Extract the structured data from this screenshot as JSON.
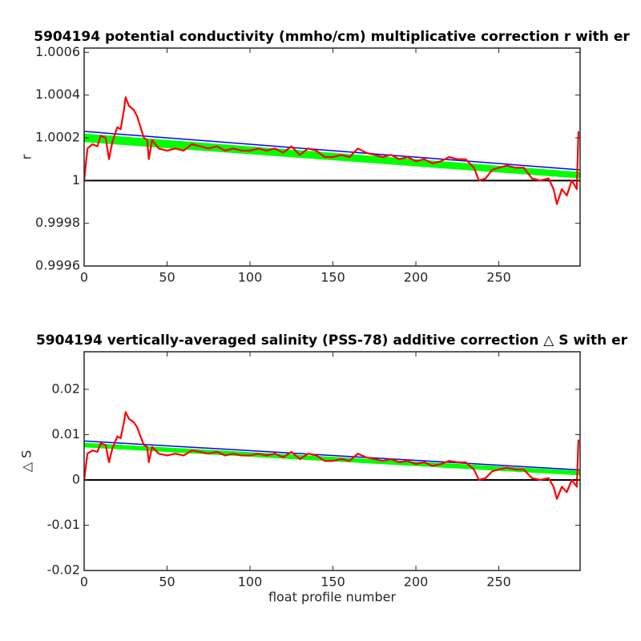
{
  "chart_data": [
    {
      "type": "line",
      "title": "5904194 potential conductivity (mmho/cm) multiplicative correction r with er",
      "ylabel": "r",
      "x": [
        0,
        2,
        5,
        8,
        10,
        13,
        15,
        17,
        20,
        22,
        24,
        25,
        27,
        30,
        32,
        34,
        36,
        38,
        39,
        41,
        45,
        50,
        55,
        60,
        65,
        70,
        75,
        80,
        85,
        90,
        95,
        100,
        105,
        110,
        115,
        120,
        125,
        130,
        135,
        140,
        145,
        150,
        155,
        160,
        165,
        170,
        175,
        180,
        185,
        190,
        195,
        200,
        205,
        210,
        215,
        220,
        225,
        230,
        235,
        238,
        242,
        246,
        250,
        255,
        260,
        265,
        270,
        275,
        280,
        283,
        285,
        288,
        291,
        294,
        297,
        298
      ],
      "series": [
        {
          "color": "#ff0000",
          "values": [
            1.0,
            1.00015,
            1.00017,
            1.00016,
            1.00021,
            1.0002,
            1.0001,
            1.00018,
            1.00025,
            1.00024,
            1.00033,
            1.00039,
            1.00035,
            1.00033,
            1.0003,
            1.00025,
            1.0002,
            1.00019,
            1.0001,
            1.00019,
            1.00015,
            1.00014,
            1.00015,
            1.00014,
            1.00017,
            1.00016,
            1.00015,
            1.00016,
            1.00014,
            1.00015,
            1.00014,
            1.00014,
            1.00015,
            1.00014,
            1.00015,
            1.00013,
            1.00016,
            1.00012,
            1.00015,
            1.00014,
            1.00011,
            1.00011,
            1.00012,
            1.00011,
            1.00015,
            1.00013,
            1.00012,
            1.00011,
            1.00012,
            1.0001,
            1.00011,
            1.00009,
            1.0001,
            1.00008,
            1.00009,
            1.00011,
            1.0001,
            1.0001,
            1.00006,
            1.0,
            1.00001,
            1.00005,
            1.00006,
            1.00007,
            1.00006,
            1.00006,
            1.00001,
            1.0,
            1.00001,
            0.99996,
            0.99989,
            0.99996,
            0.99993,
            1.0,
            0.99996,
            1.00023
          ]
        }
      ],
      "band": {
        "x": [
          0,
          299
        ],
        "upper": [
          1.00022,
          1.00004
        ],
        "lower": [
          1.00018,
          1.00001
        ],
        "color": "#00ff00"
      },
      "fit": {
        "x": [
          0,
          299
        ],
        "values": [
          1.00023,
          1.00005
        ],
        "color": "#0000ff"
      },
      "reference_line": 1,
      "xlim": [
        0,
        299
      ],
      "xticks": [
        0,
        50,
        100,
        150,
        200,
        250
      ],
      "ylim": [
        0.9996,
        1.00062
      ],
      "yticks": [
        0.9996,
        0.9998,
        1,
        1.0002,
        1.0004,
        1.0006
      ]
    },
    {
      "type": "line",
      "title": "5904194 vertically-averaged salinity (PSS-78) additive correction △ S with er",
      "ylabel": "△ S",
      "xlabel": "float profile number",
      "x": [
        0,
        2,
        5,
        8,
        10,
        13,
        15,
        17,
        20,
        22,
        24,
        25,
        27,
        30,
        32,
        34,
        36,
        38,
        39,
        41,
        45,
        50,
        55,
        60,
        65,
        70,
        75,
        80,
        85,
        90,
        95,
        100,
        105,
        110,
        115,
        120,
        125,
        130,
        135,
        140,
        145,
        150,
        155,
        160,
        165,
        170,
        175,
        180,
        185,
        190,
        195,
        200,
        205,
        210,
        215,
        220,
        225,
        230,
        235,
        238,
        242,
        246,
        250,
        255,
        260,
        265,
        270,
        275,
        280,
        283,
        285,
        288,
        291,
        294,
        297,
        298
      ],
      "series": [
        {
          "color": "#ff0000",
          "values": [
            0,
            0.0058,
            0.0065,
            0.0062,
            0.0081,
            0.0077,
            0.0039,
            0.0069,
            0.0096,
            0.0092,
            0.0127,
            0.015,
            0.0135,
            0.0127,
            0.0116,
            0.0096,
            0.0077,
            0.0073,
            0.0039,
            0.0073,
            0.0058,
            0.0054,
            0.0058,
            0.0054,
            0.0065,
            0.0062,
            0.0058,
            0.0062,
            0.0054,
            0.0058,
            0.0054,
            0.0054,
            0.0058,
            0.0054,
            0.0058,
            0.005,
            0.0062,
            0.0046,
            0.0058,
            0.0054,
            0.0042,
            0.0042,
            0.0046,
            0.0042,
            0.0058,
            0.005,
            0.0046,
            0.0042,
            0.0046,
            0.0039,
            0.0042,
            0.0035,
            0.0039,
            0.0031,
            0.0035,
            0.0042,
            0.0039,
            0.0039,
            0.0023,
            0,
            0.0004,
            0.0019,
            0.0023,
            0.0027,
            0.0023,
            0.0023,
            0.0004,
            0,
            0.0004,
            -0.0015,
            -0.0042,
            -0.0015,
            -0.0027,
            0,
            -0.0015,
            0.0089
          ]
        }
      ],
      "band": {
        "x": [
          0,
          299
        ],
        "upper": [
          0.0082,
          0.002
        ],
        "lower": [
          0.0072,
          0.001
        ],
        "color": "#00ff00"
      },
      "fit": {
        "x": [
          0,
          299
        ],
        "values": [
          0.0086,
          0.0022
        ],
        "color": "#0000ff"
      },
      "reference_line": 0,
      "xlim": [
        0,
        299
      ],
      "xticks": [
        0,
        50,
        100,
        150,
        200,
        250
      ],
      "ylim": [
        -0.02,
        0.0283
      ],
      "yticks": [
        -0.02,
        -0.01,
        0,
        0.01,
        0.02
      ]
    }
  ]
}
